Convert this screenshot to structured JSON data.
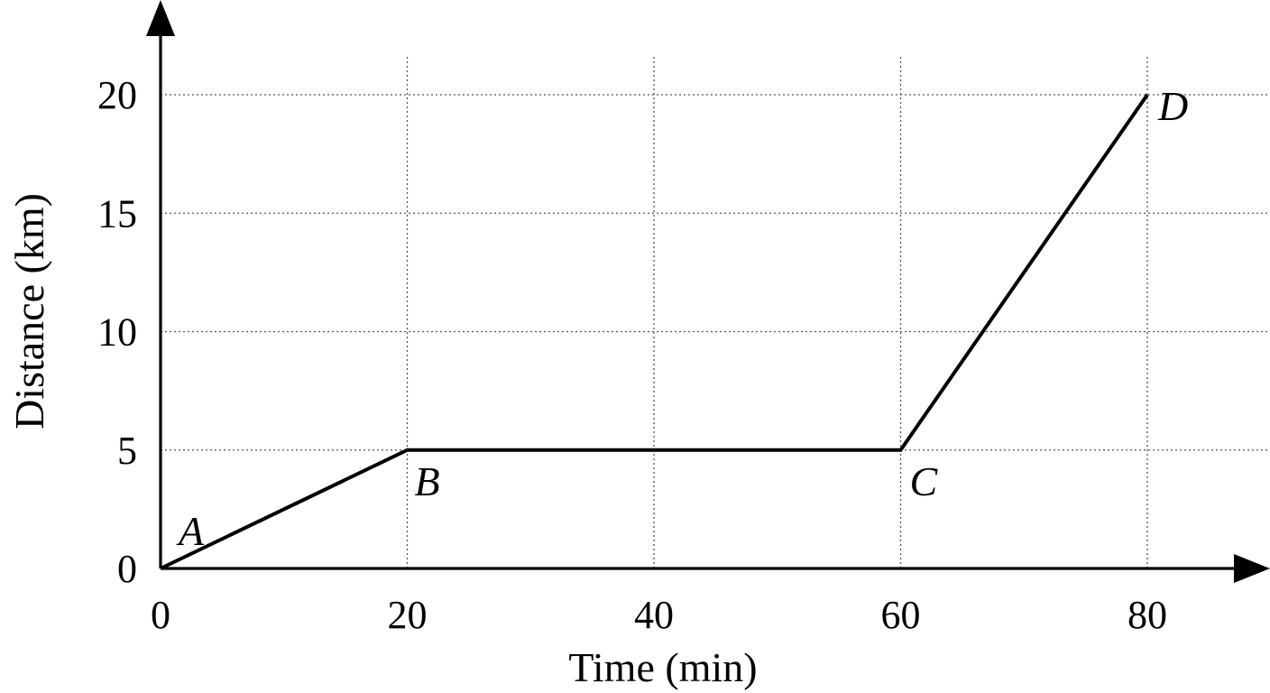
{
  "chart_data": {
    "type": "line",
    "title": "",
    "xlabel": "Time (min)",
    "ylabel": "Distance (km)",
    "xlim": [
      0,
      80
    ],
    "ylim": [
      0,
      20
    ],
    "x_ticks": [
      0,
      20,
      40,
      60,
      80
    ],
    "y_ticks": [
      0,
      5,
      10,
      15,
      20
    ],
    "grid": true,
    "legend": "none",
    "series": [
      {
        "points": [
          {
            "label": "A",
            "x": 0,
            "y": 0
          },
          {
            "label": "B",
            "x": 20,
            "y": 5
          },
          {
            "label": "C",
            "x": 60,
            "y": 5
          },
          {
            "label": "D",
            "x": 80,
            "y": 20
          }
        ]
      }
    ],
    "colors": {
      "line": "#000000",
      "grid": "#555555"
    }
  }
}
